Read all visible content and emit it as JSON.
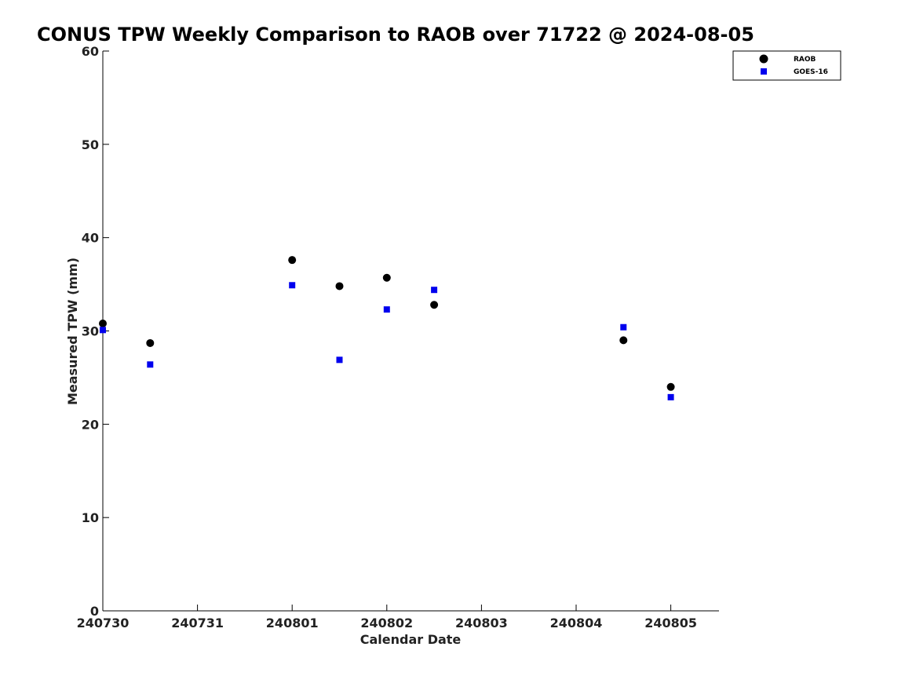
{
  "chart_data": {
    "type": "scatter",
    "title": "CONUS TPW Weekly Comparison to RAOB over 71722 @ 2024-08-05",
    "xlabel": "Calendar Date",
    "ylabel": "Measured TPW (mm)",
    "x_tick_labels": [
      "240730",
      "240731",
      "240801",
      "240802",
      "240803",
      "240804",
      "240805"
    ],
    "y_ticks": [
      0,
      10,
      20,
      30,
      40,
      50,
      60
    ],
    "ylim": [
      0,
      60
    ],
    "grid": false,
    "legend_position": "top-right",
    "series": [
      {
        "name": "RAOB",
        "marker": "circle",
        "color": "#000000",
        "points": [
          {
            "x": "2024-07-30 00Z",
            "y": 30.8
          },
          {
            "x": "2024-07-30 12Z",
            "y": 28.7
          },
          {
            "x": "2024-08-01 00Z",
            "y": 37.6
          },
          {
            "x": "2024-08-01 12Z",
            "y": 34.8
          },
          {
            "x": "2024-08-02 00Z",
            "y": 35.7
          },
          {
            "x": "2024-08-02 12Z",
            "y": 32.8
          },
          {
            "x": "2024-08-04 12Z",
            "y": 29.0
          },
          {
            "x": "2024-08-05 00Z",
            "y": 24.0
          }
        ]
      },
      {
        "name": "GOES-16",
        "marker": "square",
        "color": "#0000ee",
        "points": [
          {
            "x": "2024-07-30 00Z",
            "y": 30.1
          },
          {
            "x": "2024-07-30 12Z",
            "y": 26.4
          },
          {
            "x": "2024-08-01 00Z",
            "y": 34.9
          },
          {
            "x": "2024-08-01 12Z",
            "y": 26.9
          },
          {
            "x": "2024-08-02 00Z",
            "y": 32.3
          },
          {
            "x": "2024-08-02 12Z",
            "y": 34.4
          },
          {
            "x": "2024-08-04 12Z",
            "y": 30.4
          },
          {
            "x": "2024-08-05 00Z",
            "y": 22.9
          }
        ]
      }
    ]
  }
}
